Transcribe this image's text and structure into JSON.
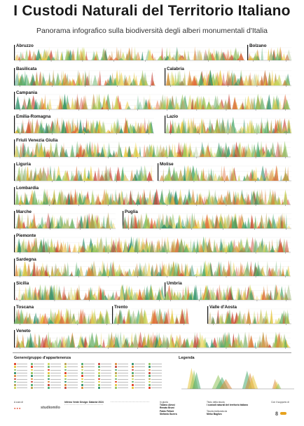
{
  "poster": {
    "title": "I Custodi Naturali del Territorio Italiano",
    "subtitle": "Panorama infografico sulla biodiversità degli alberi monumentali d'Italia"
  },
  "chart_data": {
    "type": "area",
    "description_of_marks": "triangular peaks, one per monumental tree, grouped by region",
    "palette": [
      "#e6c53a",
      "#c9d45a",
      "#8fc25a",
      "#4aa96c",
      "#2e8f6a",
      "#d98a3a",
      "#e26a3a",
      "#c8463a",
      "#a9c28a",
      "#f0d870",
      "#6db36e",
      "#b8a04a"
    ],
    "regions": [
      {
        "name": "Abruzzo",
        "density": 0.55
      },
      {
        "name": "Bolzano",
        "density": 0.5
      },
      {
        "name": "Basilicata",
        "density": 0.55
      },
      {
        "name": "Calabria",
        "density": 0.65
      },
      {
        "name": "Campania",
        "density": 0.5
      },
      {
        "name": "Emilia-Romagna",
        "density": 0.75
      },
      {
        "name": "Lazio",
        "density": 0.7
      },
      {
        "name": "Friuli Venezia Giulia",
        "density": 0.7
      },
      {
        "name": "Liguria",
        "density": 0.55
      },
      {
        "name": "Molise",
        "density": 0.5
      },
      {
        "name": "Lombardia",
        "density": 0.8
      },
      {
        "name": "Marche",
        "density": 0.65
      },
      {
        "name": "Puglia",
        "density": 0.7
      },
      {
        "name": "Piemonte",
        "density": 0.75
      },
      {
        "name": "Sardegna",
        "density": 0.6
      },
      {
        "name": "Sicilia",
        "density": 0.7
      },
      {
        "name": "Umbria",
        "density": 0.6
      },
      {
        "name": "Toscana",
        "density": 0.7
      },
      {
        "name": "Trento",
        "density": 0.6
      },
      {
        "name": "Valle d'Aosta",
        "density": 0.55
      },
      {
        "name": "Veneto",
        "density": 0.7
      }
    ]
  },
  "legend": {
    "groups_title": "Genere/gruppo d'appartenenza",
    "legend_title": "Legenda",
    "colors": [
      "#e03a1e",
      "#e6c53a",
      "#8fc25a",
      "#2e8f6a",
      "#d98a3a",
      "#c8463a",
      "#4aa96c",
      "#b8a04a",
      "#c9d45a",
      "#6db36e"
    ]
  },
  "footer": {
    "a_cura_di": "A cura di",
    "logo1": "studiomilo",
    "project_title": "Inferno Verde Design: Datavizi 2024",
    "giuria_label": "In giuria",
    "giuria_names": [
      "Tiziano Alessi",
      "Renato Bruni",
      "Fabio Felloni",
      "Stefania Guerra"
    ],
    "tavola_title": "Titolo della tavola",
    "tavola_name": "I custodi naturali del territorio italiano",
    "author_label": "Tavola realizzata da",
    "author_name": "Mirko Baglivo",
    "support_label": "Con il supporto di"
  }
}
